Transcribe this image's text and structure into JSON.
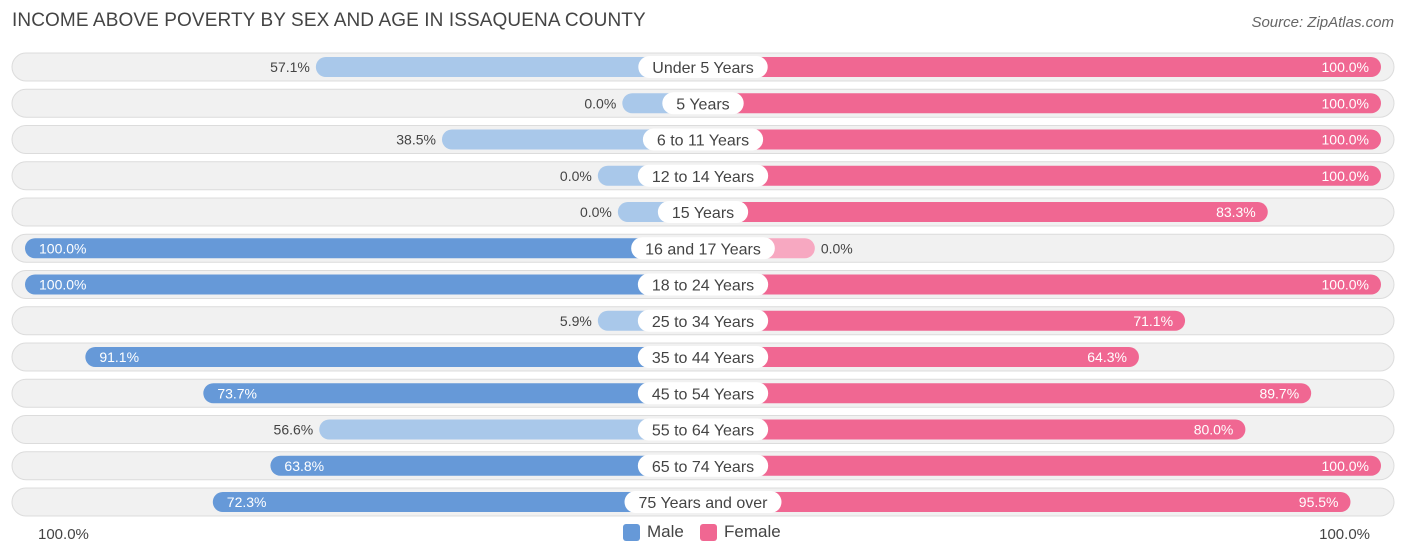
{
  "title": "INCOME ABOVE POVERTY BY SEX AND AGE IN ISSAQUENA COUNTY",
  "source": "Source: ZipAtlas.com",
  "colors": {
    "male_strong": "#6699d8",
    "male_light": "#a9c8ea",
    "female_strong": "#f06792",
    "female_light": "#f7a8c1",
    "row_bg": "#f1f1f1",
    "row_border": "#dcdcdc"
  },
  "legend": {
    "male": "Male",
    "female": "Female"
  },
  "axis": {
    "left_label": "100.0%",
    "right_label": "100.0%"
  },
  "chart_data": {
    "type": "bar",
    "orientation": "horizontal-diverging",
    "categories": [
      "Under 5 Years",
      "5 Years",
      "6 to 11 Years",
      "12 to 14 Years",
      "15 Years",
      "16 and 17 Years",
      "18 to 24 Years",
      "25 to 34 Years",
      "35 to 44 Years",
      "45 to 54 Years",
      "55 to 64 Years",
      "65 to 74 Years",
      "75 Years and over"
    ],
    "series": [
      {
        "name": "Male",
        "values": [
          57.1,
          0.0,
          38.5,
          0.0,
          0.0,
          100.0,
          100.0,
          5.9,
          91.1,
          73.7,
          56.6,
          63.8,
          72.3
        ],
        "labels": [
          "57.1%",
          "0.0%",
          "38.5%",
          "0.0%",
          "0.0%",
          "100.0%",
          "100.0%",
          "5.9%",
          "91.1%",
          "73.7%",
          "56.6%",
          "63.8%",
          "72.3%"
        ]
      },
      {
        "name": "Female",
        "values": [
          100.0,
          100.0,
          100.0,
          100.0,
          83.3,
          0.0,
          100.0,
          71.1,
          64.3,
          89.7,
          80.0,
          100.0,
          95.5
        ],
        "labels": [
          "100.0%",
          "100.0%",
          "100.0%",
          "100.0%",
          "83.3%",
          "0.0%",
          "100.0%",
          "71.1%",
          "64.3%",
          "89.7%",
          "80.0%",
          "100.0%",
          "95.5%"
        ]
      }
    ],
    "xlim": [
      0,
      100
    ],
    "legend_position": "bottom-center"
  }
}
